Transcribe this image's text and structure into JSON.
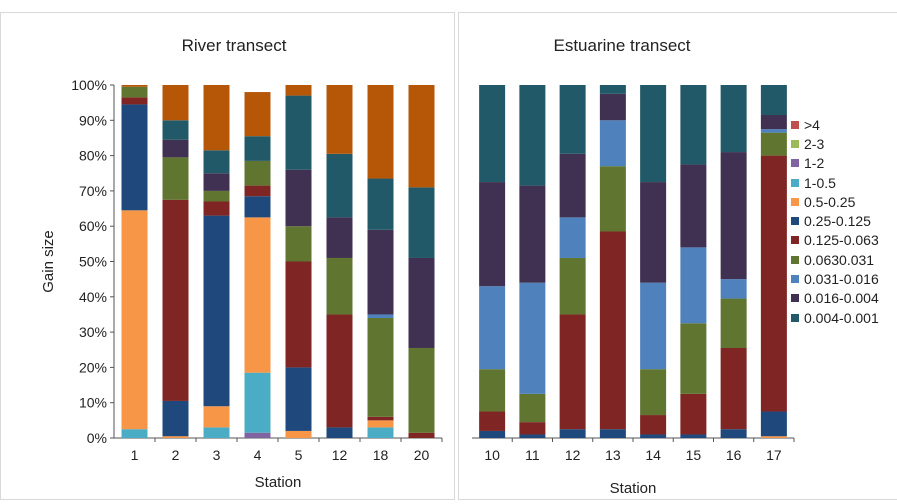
{
  "legend_title_note": "",
  "chart_data": [
    {
      "type": "bar",
      "stacked": true,
      "normalized": true,
      "title": "River transect",
      "xlabel": "Station",
      "ylabel": "Gain size",
      "ylim": [
        0,
        100
      ],
      "yticks": [
        "0%",
        "10%",
        "20%",
        "30%",
        "40%",
        "50%",
        "60%",
        "70%",
        "80%",
        "90%",
        "100%"
      ],
      "grid": false,
      "categories": [
        "1",
        "2",
        "3",
        "4",
        "5",
        "12",
        "18",
        "20"
      ],
      "series": [
        {
          "name": ">4",
          "color": "#c0504d",
          "values": [
            0,
            0,
            0,
            0,
            0,
            0,
            0,
            0
          ]
        },
        {
          "name": "2-3",
          "color": "#9bbb59",
          "values": [
            0,
            0,
            0,
            0,
            0,
            0,
            0,
            0
          ]
        },
        {
          "name": "1-2",
          "color": "#8064a2",
          "values": [
            0,
            0,
            0,
            1.5,
            0,
            0,
            0,
            0
          ]
        },
        {
          "name": "1-0.5",
          "color": "#4bacc6",
          "values": [
            2.5,
            0,
            3,
            17,
            0,
            0,
            3,
            0
          ]
        },
        {
          "name": "0.5-0.25",
          "color": "#f79646",
          "values": [
            62,
            0.5,
            6,
            44,
            2,
            0,
            2,
            0
          ]
        },
        {
          "name": "0.25-0.125",
          "color": "#1f497d",
          "values": [
            30,
            10,
            54,
            6,
            18,
            3,
            0,
            0
          ]
        },
        {
          "name": "0.125-0.063",
          "color": "#7f2524",
          "values": [
            2,
            57,
            4,
            3,
            30,
            32,
            1,
            1.5
          ]
        },
        {
          "name": "0.0630.031",
          "color": "#5f7530",
          "values": [
            3,
            12,
            3,
            7,
            10,
            16,
            28,
            24
          ]
        },
        {
          "name": "0.031-0.016",
          "color": "#4f81bd",
          "values": [
            0,
            0,
            0,
            0,
            0,
            0,
            1,
            0
          ]
        },
        {
          "name": "0.016-0.004",
          "color": "#403152",
          "values": [
            0,
            5,
            5,
            0,
            16,
            11.5,
            24,
            25.5
          ]
        },
        {
          "name": "0.004-0.001",
          "color": "#215968",
          "values": [
            0,
            5.5,
            6.5,
            7,
            21,
            18,
            14.5,
            20
          ]
        },
        {
          "name": "",
          "color": "#b65708",
          "values": [
            0.5,
            10,
            18.5,
            12.5,
            3,
            19.5,
            26.5,
            29
          ]
        }
      ]
    },
    {
      "type": "bar",
      "stacked": true,
      "normalized": true,
      "title": "Estuarine transect",
      "xlabel": "Station",
      "ylabel": "",
      "ylim": [
        0,
        100
      ],
      "grid": false,
      "categories": [
        "10",
        "11",
        "12",
        "13",
        "14",
        "15",
        "16",
        "17"
      ],
      "legend": [
        ">4",
        "2-3",
        "1-2",
        "1-0.5",
        "0.5-0.25",
        "0.25-0.125",
        "0.125-0.063",
        "0.0630.031",
        "0.031-0.016",
        "0.016-0.004",
        "0.004-0.001"
      ],
      "legend_position": "right",
      "series": [
        {
          "name": ">4",
          "color": "#c0504d",
          "values": [
            0,
            0,
            0,
            0,
            0,
            0,
            0,
            0
          ]
        },
        {
          "name": "2-3",
          "color": "#9bbb59",
          "values": [
            0,
            0,
            0,
            0,
            0,
            0,
            0,
            0
          ]
        },
        {
          "name": "1-2",
          "color": "#8064a2",
          "values": [
            0,
            0,
            0,
            0,
            0,
            0,
            0,
            0
          ]
        },
        {
          "name": "1-0.5",
          "color": "#4bacc6",
          "values": [
            0,
            0,
            0,
            0,
            0,
            0,
            0,
            0
          ]
        },
        {
          "name": "0.5-0.25",
          "color": "#f79646",
          "values": [
            0,
            0,
            0,
            0,
            0,
            0,
            0,
            0.5
          ]
        },
        {
          "name": "0.25-0.125",
          "color": "#1f497d",
          "values": [
            2,
            1,
            2.5,
            2.5,
            1,
            1,
            2.5,
            7
          ]
        },
        {
          "name": "0.125-0.063",
          "color": "#7f2524",
          "values": [
            5.5,
            3.5,
            32.5,
            56,
            5.5,
            11.5,
            23,
            72.5
          ]
        },
        {
          "name": "0.0630.031",
          "color": "#5f7530",
          "values": [
            12,
            8,
            16,
            18.5,
            13,
            20,
            14,
            6.5
          ]
        },
        {
          "name": "0.031-0.016",
          "color": "#4f81bd",
          "values": [
            23.5,
            31.5,
            11.5,
            13,
            24.5,
            21.5,
            5.5,
            1
          ]
        },
        {
          "name": "0.016-0.004",
          "color": "#403152",
          "values": [
            29.5,
            27.5,
            18,
            7.5,
            28.5,
            23.5,
            36,
            4
          ]
        },
        {
          "name": "0.004-0.001",
          "color": "#215968",
          "values": [
            27.5,
            28.5,
            19.5,
            2.5,
            27.5,
            22.5,
            19,
            8.5
          ]
        }
      ]
    }
  ]
}
